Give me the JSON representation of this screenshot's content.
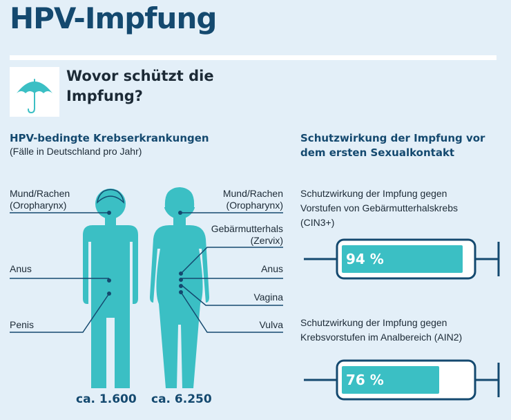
{
  "title": "HPV-Impfung",
  "question": "Wovor schützt die Impfung?",
  "icons": {
    "umbrella": "umbrella-icon",
    "male": "male-figure-icon",
    "female": "female-figure-icon",
    "syringe": "syringe-icon"
  },
  "colors": {
    "figure": "#3bbfc4",
    "heading": "#14496f",
    "background": "#e3eff8",
    "line": "#14496f"
  },
  "left": {
    "heading": "HPV-bedingte Krebserkrankungen",
    "subheading": "(Fälle in Deutschland pro Jahr)",
    "male": {
      "labels": [
        "Mund/Rachen",
        "(Oropharynx)",
        "Anus",
        "Penis"
      ],
      "count": "ca. 1.600"
    },
    "female": {
      "labels": [
        "Mund/Rachen",
        "(Oropharynx)",
        "Gebärmutterhals",
        "(Zervix)",
        "Anus",
        "Vagina",
        "Vulva"
      ],
      "count": "ca. 6.250"
    }
  },
  "right": {
    "heading": "Schutzwirkung der Impfung vor dem ersten Sexualkontakt",
    "items": [
      {
        "line1": "Schutzwirkung der Impfung gegen",
        "line2": "Vorstufen von Gebärmutterhalskrebs",
        "line3": "(CIN3+)",
        "value_label": "94 %",
        "value": 0.94
      },
      {
        "line1": "Schutzwirkung der Impfung gegen",
        "line2": "Krebsvorstufen im Analbereich (AIN2)",
        "value_label": "76 %",
        "value": 0.76
      }
    ]
  }
}
